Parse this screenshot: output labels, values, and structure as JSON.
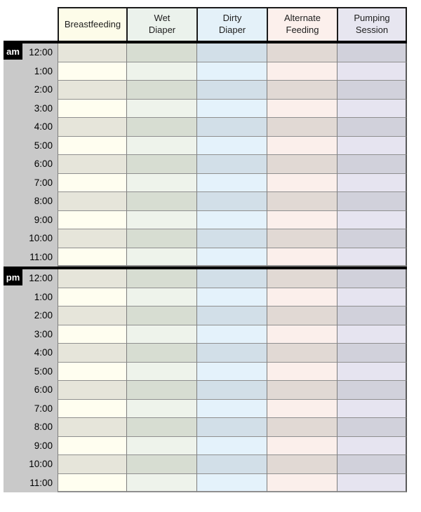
{
  "page": {
    "background": "#ffffff"
  },
  "table": {
    "columns": [
      {
        "id": "breastfeeding",
        "label": "Breastfeeding",
        "header_bg": "#fdfce9",
        "row_dark": "#e6e5da",
        "row_light": "#fffef0"
      },
      {
        "id": "wet-diaper",
        "label": "Wet\nDiaper",
        "header_bg": "#ebf2ec",
        "row_dark": "#d7ddd2",
        "row_light": "#eef3eb"
      },
      {
        "id": "dirty-diaper",
        "label": "Dirty\nDiaper",
        "header_bg": "#e4f1f9",
        "row_dark": "#d2dfe8",
        "row_light": "#e4f2fb"
      },
      {
        "id": "alternate-feeding",
        "label": "Alternate\nFeeding",
        "header_bg": "#fcf0ec",
        "row_dark": "#e1d9d4",
        "row_light": "#fbefeb"
      },
      {
        "id": "pumping-session",
        "label": "Pumping\nSession",
        "header_bg": "#e7e6f0",
        "row_dark": "#d1d1db",
        "row_light": "#e6e4f0"
      }
    ],
    "row_times": [
      "12:00",
      "1:00",
      "2:00",
      "3:00",
      "4:00",
      "5:00",
      "6:00",
      "7:00",
      "8:00",
      "9:00",
      "10:00",
      "11:00"
    ],
    "periods": [
      {
        "badge": "am"
      },
      {
        "badge": "pm"
      }
    ],
    "colors": {
      "time_column_bg": "#c9c9c9",
      "badge_bg": "#000000",
      "badge_text": "#ffffff",
      "grid_line": "#8f8f8f",
      "column_line": "#7d7d7d",
      "header_border": "#1b1b1b",
      "section_divider": "#000000"
    }
  }
}
